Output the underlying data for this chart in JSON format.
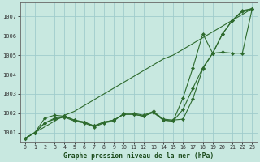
{
  "x": [
    0,
    1,
    2,
    3,
    4,
    5,
    6,
    7,
    8,
    9,
    10,
    11,
    12,
    13,
    14,
    15,
    16,
    17,
    18,
    19,
    20,
    21,
    22,
    23
  ],
  "line_straight": [
    1000.7,
    1001.0,
    1001.3,
    1001.6,
    1001.9,
    1002.1,
    1002.4,
    1002.7,
    1003.0,
    1003.3,
    1003.6,
    1003.9,
    1004.2,
    1004.5,
    1004.8,
    1005.0,
    1005.3,
    1005.6,
    1005.9,
    1006.2,
    1006.5,
    1006.8,
    1007.1,
    1007.4
  ],
  "line_upper": [
    1000.7,
    1001.0,
    1001.5,
    1001.75,
    1001.85,
    1001.65,
    1001.55,
    1001.35,
    1001.55,
    1001.65,
    1001.95,
    1001.95,
    1001.85,
    1002.05,
    1001.65,
    1001.6,
    1002.8,
    1004.35,
    1006.1,
    1005.1,
    1006.1,
    1006.8,
    1007.25,
    1007.4
  ],
  "line_mid": [
    1000.7,
    1001.0,
    1001.75,
    1001.9,
    1001.85,
    1001.65,
    1001.55,
    1001.35,
    1001.55,
    1001.65,
    1001.95,
    1001.95,
    1001.85,
    1002.05,
    1001.65,
    1001.6,
    1002.2,
    1003.3,
    1004.35,
    1005.1,
    1005.15,
    1005.1,
    1005.1,
    1007.4
  ],
  "line_lower": [
    1000.7,
    1001.0,
    1001.5,
    1001.7,
    1001.8,
    1001.6,
    1001.5,
    1001.3,
    1001.5,
    1001.6,
    1002.0,
    1002.0,
    1001.9,
    1002.1,
    1001.7,
    1001.65,
    1001.7,
    1002.75,
    1004.3,
    1005.1,
    1006.1,
    1006.8,
    1007.3,
    1007.4
  ],
  "bg_color": "#c8e8e0",
  "grid_color": "#a0cccc",
  "line_color": "#2d6a2d",
  "title": "Graphe pression niveau de la mer (hPa)",
  "ylim_min": 1000.55,
  "ylim_max": 1007.7,
  "yticks": [
    1001,
    1002,
    1003,
    1004,
    1005,
    1006,
    1007
  ],
  "xticks": [
    0,
    1,
    2,
    3,
    4,
    5,
    6,
    7,
    8,
    9,
    10,
    11,
    12,
    13,
    14,
    15,
    16,
    17,
    18,
    19,
    20,
    21,
    22,
    23
  ]
}
